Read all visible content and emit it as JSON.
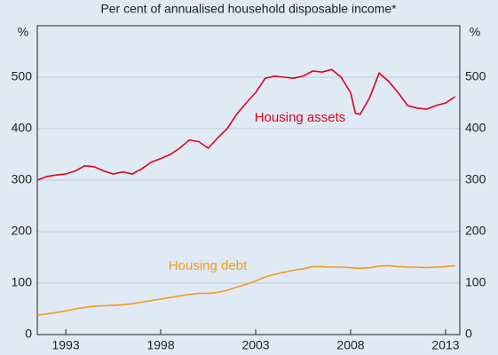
{
  "chart_data": {
    "type": "line",
    "subtitle": "Per cent of annualised household disposable income*",
    "y_unit_left": "%",
    "y_unit_right": "%",
    "x": [
      1991.5,
      1992,
      1992.5,
      1993,
      1993.5,
      1994,
      1994.5,
      1995,
      1995.5,
      1996,
      1996.5,
      1997,
      1997.5,
      1998,
      1998.5,
      1999,
      1999.5,
      2000,
      2000.5,
      2001,
      2001.5,
      2002,
      2002.5,
      2003,
      2003.5,
      2004,
      2004.5,
      2005,
      2005.5,
      2006,
      2006.5,
      2007,
      2007.5,
      2008,
      2008.25,
      2008.5,
      2009,
      2009.5,
      2010,
      2010.5,
      2011,
      2011.5,
      2012,
      2012.5,
      2013,
      2013.5
    ],
    "series": [
      {
        "name": "Housing assets",
        "color": "#e2001a",
        "values": [
          300,
          307,
          310,
          312,
          318,
          328,
          326,
          318,
          312,
          316,
          312,
          322,
          335,
          342,
          350,
          362,
          378,
          375,
          362,
          382,
          400,
          428,
          450,
          470,
          498,
          502,
          500,
          498,
          502,
          512,
          510,
          515,
          500,
          470,
          430,
          428,
          460,
          508,
          492,
          470,
          445,
          440,
          438,
          445,
          450,
          462
        ]
      },
      {
        "name": "Housing debt",
        "color": "#f39a1e",
        "values": [
          38,
          40,
          43,
          46,
          50,
          53,
          55,
          56,
          57,
          58,
          60,
          63,
          66,
          69,
          72,
          75,
          78,
          80,
          80,
          82,
          86,
          92,
          98,
          104,
          112,
          117,
          121,
          125,
          128,
          132,
          132,
          131,
          131,
          130,
          129,
          129,
          130,
          133,
          134,
          132,
          131,
          131,
          130,
          131,
          132,
          134
        ]
      }
    ],
    "xlim": [
      1991.5,
      2013.75
    ],
    "xticks": [
      1993,
      1998,
      2003,
      2008,
      2013
    ],
    "ylim": [
      0,
      600
    ],
    "yticks": [
      0,
      100,
      200,
      300,
      400,
      500
    ],
    "grid": true
  }
}
